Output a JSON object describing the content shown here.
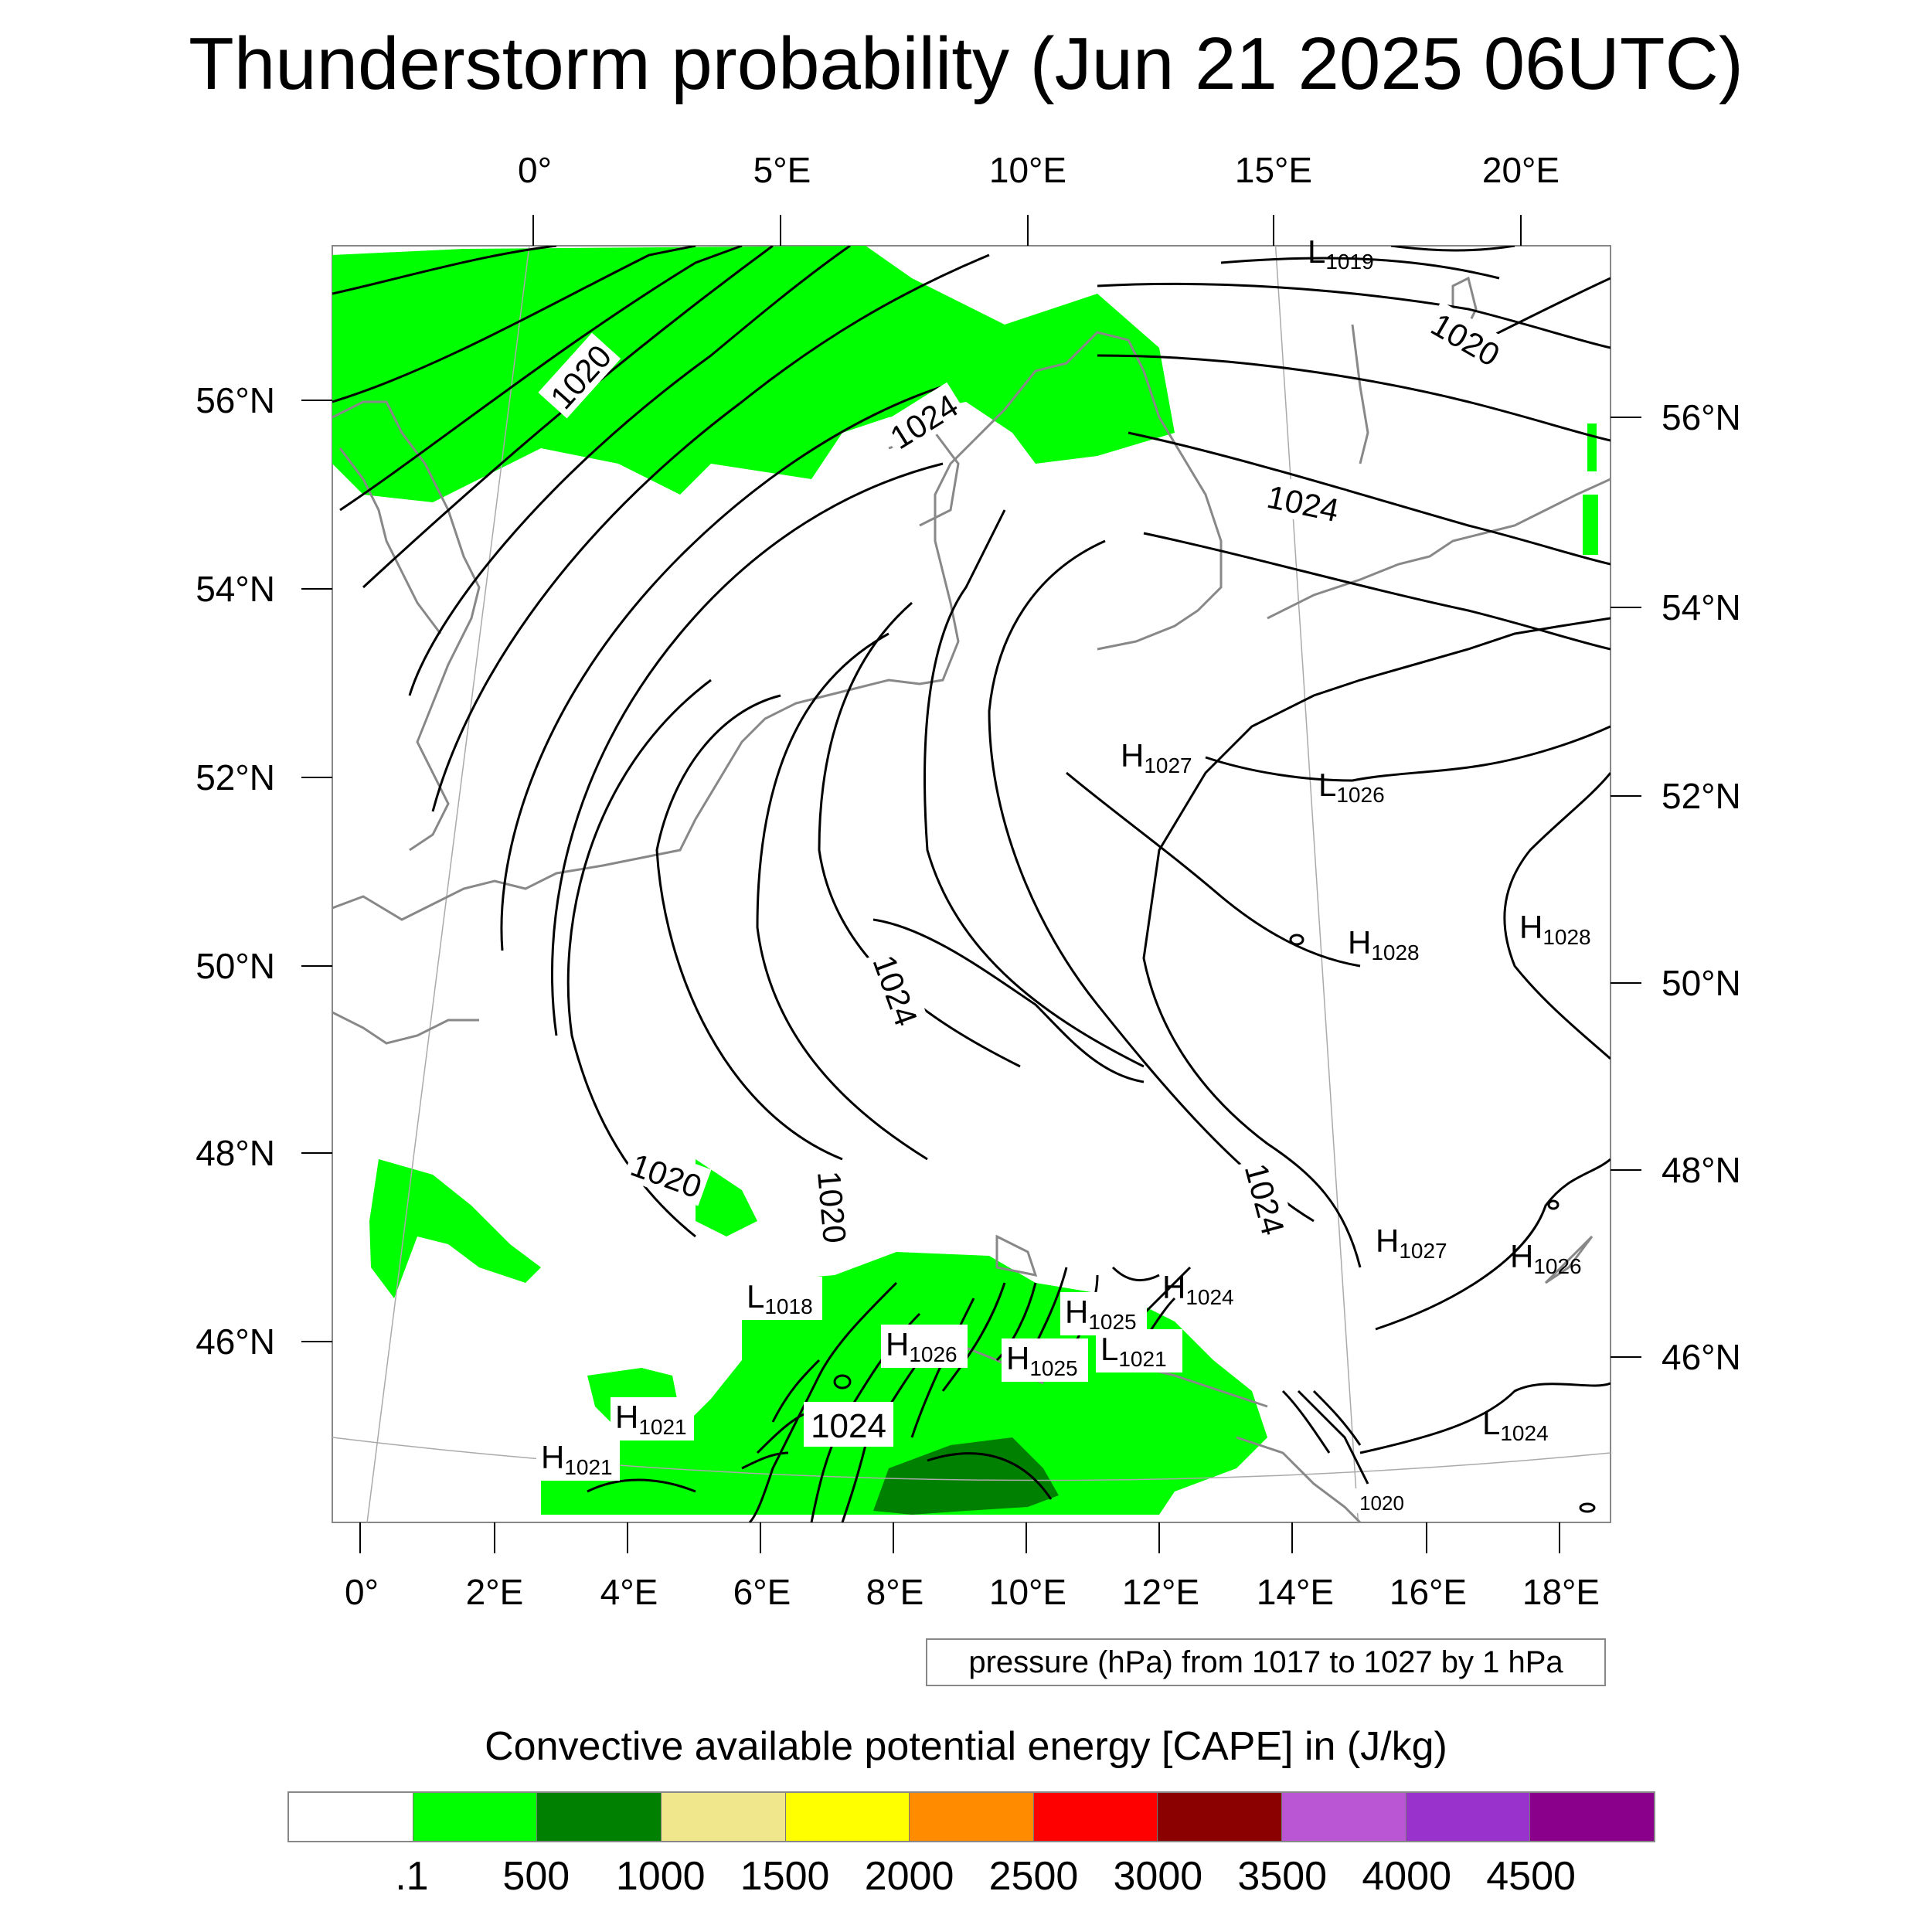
{
  "title": "Thunderstorm probability (Jun 21 2025 06UTC)",
  "top_lon_labels": [
    "0°",
    "5°E",
    "10°E",
    "15°E",
    "20°E"
  ],
  "bottom_lon_labels": [
    "0°",
    "2°E",
    "4°E",
    "6°E",
    "8°E",
    "10°E",
    "12°E",
    "14°E",
    "16°E",
    "18°E"
  ],
  "left_lat_labels": [
    "56°N",
    "54°N",
    "52°N",
    "50°N",
    "48°N",
    "46°N"
  ],
  "right_lat_labels": [
    "56°N",
    "54°N",
    "52°N",
    "50°N",
    "48°N",
    "46°N"
  ],
  "isobar_labels": [
    {
      "text": "1020"
    },
    {
      "text": "1024"
    },
    {
      "text": "1020"
    },
    {
      "text": "1024"
    },
    {
      "text": "1024"
    },
    {
      "text": "1020"
    },
    {
      "text": "1020"
    },
    {
      "text": "1024"
    },
    {
      "text": "1024"
    },
    {
      "text": "1020"
    }
  ],
  "pressure_centers": [
    {
      "letter": "L",
      "value": "1019"
    },
    {
      "letter": "H",
      "value": "1027"
    },
    {
      "letter": "L",
      "value": "1026"
    },
    {
      "letter": "H",
      "value": "1028"
    },
    {
      "letter": "H",
      "value": "1028"
    },
    {
      "letter": "H",
      "value": "1027"
    },
    {
      "letter": "H",
      "value": "1026"
    },
    {
      "letter": "L",
      "value": "1024"
    },
    {
      "letter": "H",
      "value": "1024"
    },
    {
      "letter": "H",
      "value": "1025"
    },
    {
      "letter": "L",
      "value": "1021"
    },
    {
      "letter": "H",
      "value": "1025"
    },
    {
      "letter": "H",
      "value": "1026"
    },
    {
      "letter": "L",
      "value": "1018"
    },
    {
      "letter": "H",
      "value": "1021"
    },
    {
      "letter": "H",
      "value": "1021"
    }
  ],
  "contour_info": "pressure (hPa) from 1017 to 1027 by 1 hPa",
  "colorbar": {
    "title": "Convective available potential energy [CAPE] in (J/kg)",
    "colors": [
      "#ffffff",
      "#00ff00",
      "#008000",
      "#f0e68c",
      "#ffff00",
      "#ff8c00",
      "#ff0000",
      "#8b0000",
      "#ba55d3",
      "#9932cc",
      "#8b008b"
    ],
    "labels": [
      ".1",
      "500",
      "1000",
      "1500",
      "2000",
      "2500",
      "3000",
      "3500",
      "4000",
      "4500"
    ]
  },
  "colors": {
    "cape_light": "#00ff00",
    "cape_dark": "#008000",
    "isobar": "#000000",
    "coastline": "#888888"
  }
}
